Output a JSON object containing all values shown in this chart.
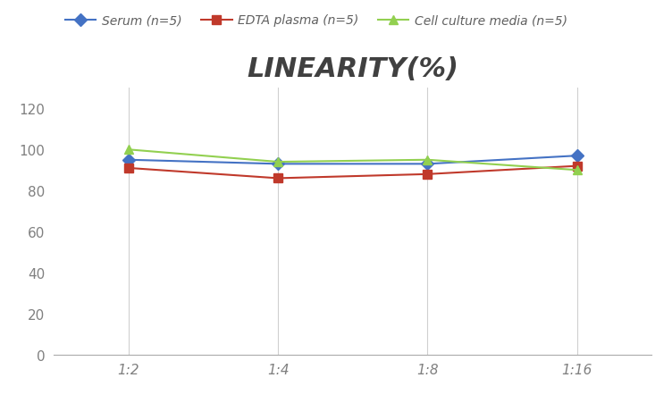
{
  "title": "LINEARITY(%)",
  "title_fontsize": 22,
  "title_fontstyle": "italic",
  "title_fontweight": "bold",
  "title_color": "#404040",
  "x_labels": [
    "1:2",
    "1:4",
    "1:8",
    "1:16"
  ],
  "x_values": [
    0,
    1,
    2,
    3
  ],
  "series": [
    {
      "label": "Serum (n=5)",
      "values": [
        95,
        93,
        93,
        97
      ],
      "color": "#4472C4",
      "marker": "D",
      "linewidth": 1.5
    },
    {
      "label": "EDTA plasma (n=5)",
      "values": [
        91,
        86,
        88,
        92
      ],
      "color": "#C0392B",
      "marker": "s",
      "linewidth": 1.5
    },
    {
      "label": "Cell culture media (n=5)",
      "values": [
        100,
        94,
        95,
        90
      ],
      "color": "#92D050",
      "marker": "^",
      "linewidth": 1.5
    }
  ],
  "ylim": [
    0,
    130
  ],
  "yticks": [
    0,
    20,
    40,
    60,
    80,
    100,
    120
  ],
  "grid_color": "#d0d0d0",
  "background_color": "#ffffff",
  "legend_fontsize": 10,
  "axis_fontsize": 11,
  "marker_size": 7
}
